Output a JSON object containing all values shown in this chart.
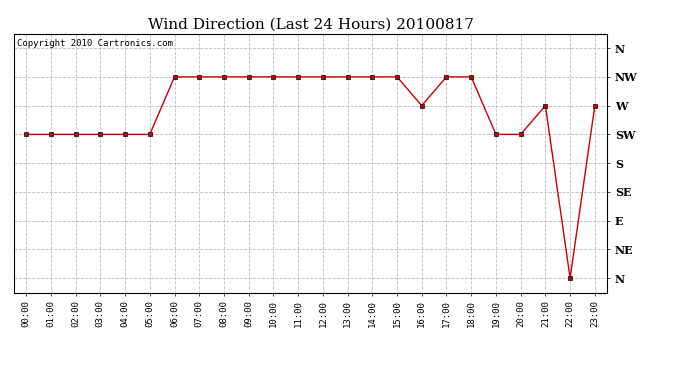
{
  "title": "Wind Direction (Last 24 Hours) 20100817",
  "copyright_text": "Copyright 2010 Cartronics.com",
  "x_labels": [
    "00:00",
    "01:00",
    "02:00",
    "03:00",
    "04:00",
    "05:00",
    "06:00",
    "07:00",
    "08:00",
    "09:00",
    "10:00",
    "11:00",
    "12:00",
    "13:00",
    "14:00",
    "15:00",
    "16:00",
    "17:00",
    "18:00",
    "19:00",
    "20:00",
    "21:00",
    "22:00",
    "23:00"
  ],
  "y_labels": [
    "N",
    "NE",
    "E",
    "SE",
    "S",
    "SW",
    "W",
    "NW",
    "N"
  ],
  "y_values": [
    0,
    1,
    2,
    3,
    4,
    5,
    6,
    7,
    8
  ],
  "wind_data": [
    5,
    5,
    5,
    5,
    5,
    5,
    7,
    7,
    7,
    7,
    7,
    7,
    7,
    7,
    7,
    7,
    6,
    7,
    7,
    5,
    5,
    6,
    0,
    6
  ],
  "line_color": "#cc0000",
  "marker": "s",
  "marker_size": 2.5,
  "bg_color": "#ffffff",
  "plot_bg_color": "#ffffff",
  "grid_color": "#bbbbbb",
  "title_fontsize": 11,
  "axis_label_fontsize": 8,
  "copyright_fontsize": 6.5
}
